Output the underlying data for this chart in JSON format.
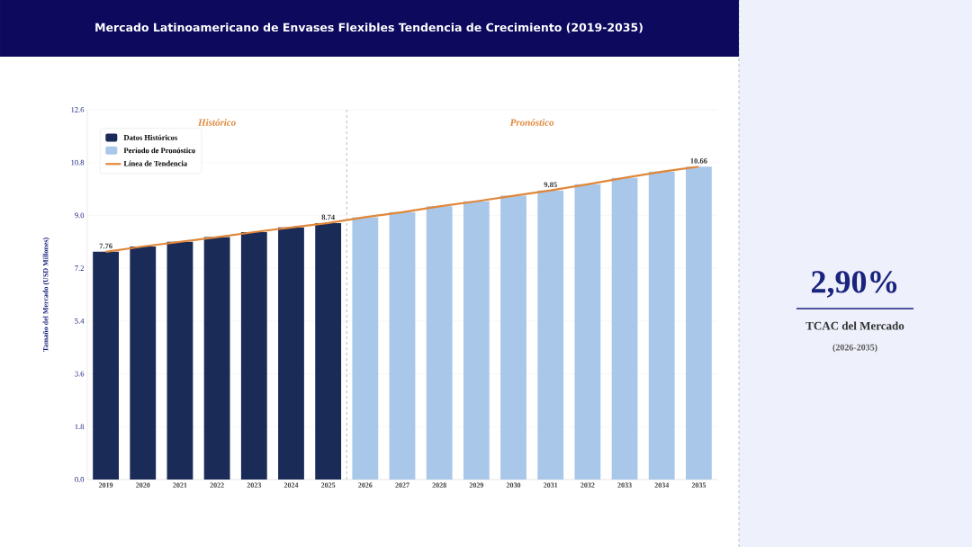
{
  "chart_data": {
    "type": "bar",
    "title": "Mercado Latinoamericano de Envases Flexibles Tendencia de Crecimiento (2019-2035)",
    "ylabel": "Tamaño del Mercado (USD Millones)",
    "categories": [
      "2019",
      "2020",
      "2021",
      "2022",
      "2023",
      "2024",
      "2025",
      "2026",
      "2027",
      "2028",
      "2029",
      "2030",
      "2031",
      "2032",
      "2033",
      "2034",
      "2035"
    ],
    "series": [
      {
        "name": "Datos Históricos",
        "type": "bar",
        "color": "#1b2b58",
        "values": [
          7.76,
          7.94,
          8.1,
          8.26,
          8.43,
          8.59,
          8.74,
          null,
          null,
          null,
          null,
          null,
          null,
          null,
          null,
          null,
          null
        ],
        "value_labels": [
          "7.76",
          null,
          null,
          null,
          null,
          null,
          "8.74",
          null,
          null,
          null,
          null,
          null,
          null,
          null,
          null,
          null,
          null
        ]
      },
      {
        "name": "Período de Pronóstico",
        "type": "bar",
        "color": "#a9c7e8",
        "values": [
          null,
          null,
          null,
          null,
          null,
          null,
          null,
          8.94,
          9.11,
          9.31,
          9.48,
          9.67,
          9.85,
          10.06,
          10.28,
          10.49,
          10.66
        ],
        "value_labels": [
          null,
          null,
          null,
          null,
          null,
          null,
          null,
          null,
          null,
          null,
          null,
          null,
          "9.85",
          null,
          null,
          null,
          "10.66"
        ]
      },
      {
        "name": "Línea de Tendencia",
        "type": "line",
        "color": "#e0873a",
        "values": [
          7.76,
          7.94,
          8.1,
          8.26,
          8.43,
          8.59,
          8.74,
          8.94,
          9.11,
          9.31,
          9.48,
          9.67,
          9.85,
          10.06,
          10.28,
          10.49,
          10.66
        ]
      }
    ],
    "ylim": [
      0,
      12.6
    ],
    "yticks": [
      {
        "value": 0,
        "label": "0.0"
      },
      1.8,
      3.6,
      5.4,
      7.2,
      {
        "value": 9,
        "label": "9.0"
      },
      10.8,
      12.6
    ],
    "grid": "y",
    "legend": "top left",
    "marker": "none",
    "line_style": "solid",
    "ref_lines": [
      {
        "axis": "x",
        "value": "2025",
        "line_style": "dashed",
        "color": "#a6a6a6"
      }
    ],
    "annotations": [
      "Histórico",
      "Pronóstico",
      "2,90%",
      "TCAC del Mercado",
      "(2026-2035)"
    ]
  }
}
